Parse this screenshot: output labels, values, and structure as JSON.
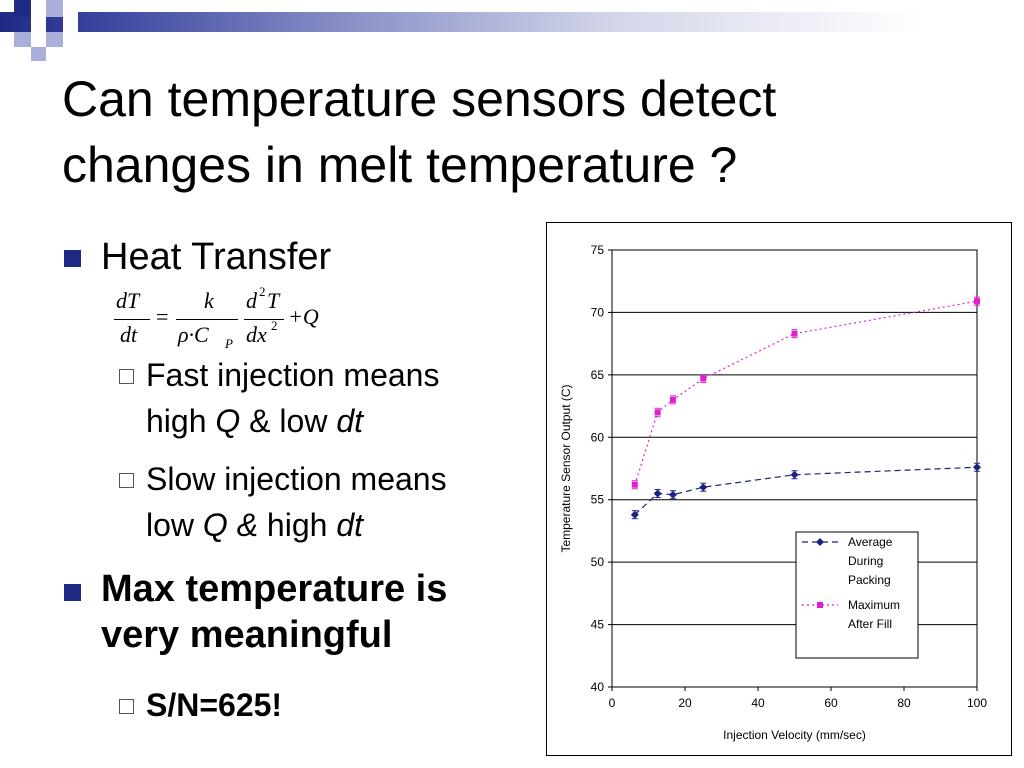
{
  "slide": {
    "title_line1": "Can temperature sensors detect",
    "title_line2": "changes in melt temperature ?",
    "bullet_heat_transfer": "Heat Transfer",
    "sub1_a": "Fast injection means",
    "sub1_b_pre": "high ",
    "sub1_b_q": "Q",
    "sub1_b_mid": " & low ",
    "sub1_b_dt": "dt",
    "sub2_a": "Slow injection means",
    "sub2_b_pre": "low ",
    "sub2_b_q": "Q &",
    "sub2_b_mid": " high ",
    "sub2_b_dt": "dt",
    "bullet_max_1": "Max temperature is",
    "bullet_max_2": "very meaningful",
    "sub3": "S/N=625!"
  },
  "equation": {
    "dT": "dT",
    "dt": "dt",
    "eq": "=",
    "k": "k",
    "rho_c": "ρ·C",
    "p": "P",
    "d2T": "d",
    "sup2": "2",
    "T": "T",
    "dx": "dx",
    "sup2b": "2",
    "plusQ": "+Q"
  },
  "chart_data": {
    "type": "line",
    "xlabel": "Injection Velocity (mm/sec)",
    "ylabel": "Temperature Sensor Output (C)",
    "xlim": [
      0,
      100
    ],
    "ylim": [
      40,
      75
    ],
    "xticks": [
      0,
      20,
      40,
      60,
      80,
      100
    ],
    "yticks": [
      40,
      45,
      50,
      55,
      60,
      65,
      70,
      75
    ],
    "grid": "horizontal",
    "legend_placement": "bottom-right",
    "series": [
      {
        "name": "Average During Packing",
        "legend_lines": [
          "Average",
          "During",
          "Packing"
        ],
        "color": "#1a237e",
        "marker": "diamond",
        "line": "dashed",
        "x": [
          6.25,
          12.5,
          16.7,
          25,
          50,
          100
        ],
        "y": [
          53.8,
          55.5,
          55.4,
          56.0,
          57.0,
          57.6
        ]
      },
      {
        "name": "Maximum After Fill",
        "legend_lines": [
          "Maximum",
          "After Fill"
        ],
        "color": "#e020d0",
        "marker": "square",
        "line": "dotted",
        "x": [
          6.25,
          12.5,
          16.7,
          25,
          50,
          100
        ],
        "y": [
          56.2,
          62.0,
          63.0,
          64.7,
          68.3,
          70.9
        ]
      }
    ]
  }
}
